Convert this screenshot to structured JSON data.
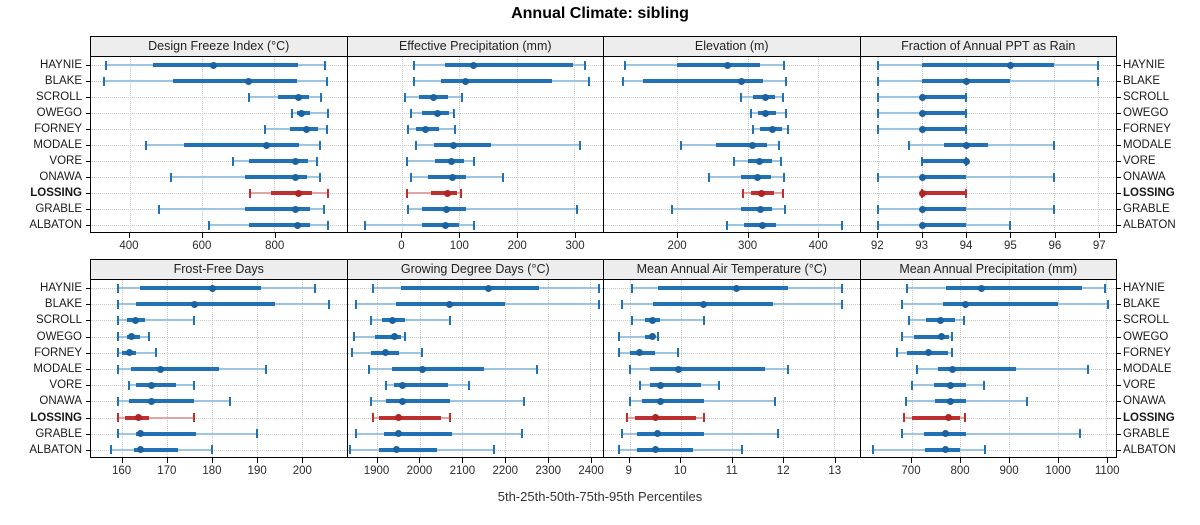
{
  "title": "Annual Climate: sibling",
  "caption": "5th-25th-50th-75th-95th Percentiles",
  "percentile_labels": [
    "5th",
    "25th",
    "50th",
    "75th",
    "95th"
  ],
  "sites": [
    "HAYNIE",
    "BLAKE",
    "SCROLL",
    "OWEGO",
    "FORNEY",
    "MODALE",
    "VORE",
    "ONAWA",
    "LOSSING",
    "GRABLE",
    "ALBATON"
  ],
  "highlight_site": "LOSSING",
  "colors": {
    "series": "#2171B5",
    "series_light": "#9DC4E0",
    "series_dot": "#1B62A1",
    "highlight": "#BE2F2F",
    "highlight_light": "#DFA6A6",
    "highlight_dot": "#B02424",
    "header_bg": "#EDEDED",
    "grid": "#C9C9C9",
    "border": "#000000"
  },
  "chart_data": [
    {
      "type": "dot-whisker",
      "title": "Design Freeze Index (°C)",
      "axis": {
        "min": 293,
        "max": 1000,
        "ticks": [
          400,
          600,
          800
        ]
      },
      "values_by_site": [
        [
          335,
          465,
          632,
          865,
          940
        ],
        [
          330,
          520,
          730,
          862,
          945
        ],
        [
          730,
          810,
          868,
          896,
          930
        ],
        [
          850,
          862,
          876,
          900,
          950
        ],
        [
          775,
          845,
          890,
          920,
          945
        ],
        [
          445,
          550,
          780,
          868,
          928
        ],
        [
          685,
          730,
          858,
          893,
          918
        ],
        [
          515,
          720,
          858,
          890,
          928
        ],
        [
          732,
          790,
          866,
          905,
          948
        ],
        [
          480,
          720,
          860,
          900,
          938
        ],
        [
          620,
          730,
          864,
          900,
          948
        ]
      ]
    },
    {
      "type": "dot-whisker",
      "title": "Effective Precipitation (mm)",
      "axis": {
        "min": -95,
        "max": 350,
        "ticks": [
          0,
          100,
          200,
          300
        ]
      },
      "values_by_site": [
        [
          20,
          75,
          125,
          298,
          318
        ],
        [
          20,
          68,
          110,
          262,
          325
        ],
        [
          5,
          30,
          55,
          80,
          105
        ],
        [
          15,
          35,
          62,
          82,
          90
        ],
        [
          10,
          25,
          40,
          65,
          92
        ],
        [
          25,
          55,
          90,
          155,
          310
        ],
        [
          8,
          58,
          87,
          108,
          125
        ],
        [
          15,
          45,
          88,
          112,
          175
        ],
        [
          8,
          50,
          80,
          95,
          103
        ],
        [
          10,
          35,
          78,
          112,
          305
        ],
        [
          -65,
          35,
          75,
          100,
          125
        ]
      ]
    },
    {
      "type": "dot-whisker",
      "title": "Elevation (m)",
      "axis": {
        "min": 95,
        "max": 460,
        "ticks": [
          200,
          300,
          400
        ]
      },
      "values_by_site": [
        [
          125,
          200,
          272,
          318,
          352
        ],
        [
          122,
          150,
          292,
          322,
          355
        ],
        [
          290,
          308,
          325,
          340,
          350
        ],
        [
          305,
          315,
          325,
          340,
          355
        ],
        [
          308,
          318,
          335,
          350,
          358
        ],
        [
          205,
          255,
          307,
          328,
          345
        ],
        [
          280,
          300,
          317,
          335,
          348
        ],
        [
          245,
          290,
          315,
          333,
          352
        ],
        [
          293,
          305,
          320,
          338,
          350
        ],
        [
          192,
          290,
          318,
          335,
          353
        ],
        [
          270,
          295,
          322,
          340,
          435
        ]
      ]
    },
    {
      "type": "dot-whisker",
      "title": "Fraction of Annual PPT as Rain",
      "axis": {
        "min": 91.6,
        "max": 97.4,
        "ticks": [
          92,
          93,
          94,
          95,
          96,
          97
        ]
      },
      "values_by_site": [
        [
          92,
          93,
          95,
          96,
          97
        ],
        [
          92,
          93,
          94,
          95,
          97
        ],
        [
          92,
          93,
          93,
          94,
          94
        ],
        [
          92,
          93,
          93,
          94,
          94
        ],
        [
          92,
          93,
          93,
          94,
          94
        ],
        [
          92.7,
          93.5,
          94,
          94.5,
          96
        ],
        [
          93,
          93,
          94,
          94,
          94
        ],
        [
          92,
          93,
          93,
          94,
          96
        ],
        [
          93,
          93,
          93,
          94,
          94
        ],
        [
          92,
          93,
          93,
          94,
          96
        ],
        [
          92,
          93,
          93,
          94,
          95
        ]
      ]
    },
    {
      "type": "dot-whisker",
      "title": "Frost-Free Days",
      "axis": {
        "min": 153,
        "max": 210,
        "ticks": [
          160,
          170,
          180,
          190,
          200
        ]
      },
      "values_by_site": [
        [
          159,
          164,
          180,
          191,
          203
        ],
        [
          159,
          163,
          176,
          194,
          206
        ],
        [
          159,
          161,
          163,
          165,
          176
        ],
        [
          159,
          161,
          162,
          164,
          166
        ],
        [
          159,
          160,
          161.5,
          163,
          167.5
        ],
        [
          159,
          162,
          168.5,
          181.5,
          192
        ],
        [
          161.5,
          163,
          166.5,
          172,
          176
        ],
        [
          159,
          161.5,
          166.5,
          176,
          184
        ],
        [
          159,
          160.5,
          163.5,
          166,
          176
        ],
        [
          159,
          163,
          164,
          176.5,
          190
        ],
        [
          157.5,
          162.5,
          164,
          172.5,
          180
        ]
      ]
    },
    {
      "type": "dot-whisker",
      "title": "Growing Degree Days (°C)",
      "axis": {
        "min": 1830,
        "max": 2430,
        "ticks": [
          1900,
          2000,
          2100,
          2200,
          2300,
          2400
        ]
      },
      "values_by_site": [
        [
          1890,
          1955,
          2160,
          2280,
          2420
        ],
        [
          1850,
          1945,
          2070,
          2200,
          2420
        ],
        [
          1885,
          1910,
          1935,
          1965,
          2070
        ],
        [
          1845,
          1895,
          1940,
          1955,
          1965
        ],
        [
          1840,
          1885,
          1920,
          1950,
          2005
        ],
        [
          1880,
          1935,
          2005,
          2150,
          2275
        ],
        [
          1920,
          1940,
          1960,
          2065,
          2115
        ],
        [
          1885,
          1920,
          1960,
          2070,
          2245
        ],
        [
          1890,
          1905,
          1950,
          2050,
          2070
        ],
        [
          1850,
          1915,
          1950,
          2075,
          2240
        ],
        [
          1835,
          1905,
          1945,
          2040,
          2175
        ]
      ]
    },
    {
      "type": "dot-whisker",
      "title": "Mean Annual Air Temperature (°C)",
      "axis": {
        "min": 8.5,
        "max": 13.5,
        "ticks": [
          9,
          10,
          11,
          12,
          13
        ]
      },
      "values_by_site": [
        [
          9.05,
          9.55,
          11.1,
          12.1,
          13.15
        ],
        [
          8.85,
          9.45,
          10.45,
          11.8,
          13.15
        ],
        [
          9.05,
          9.3,
          9.45,
          9.6,
          10.45
        ],
        [
          8.8,
          9.3,
          9.45,
          9.5,
          9.55
        ],
        [
          8.8,
          9.0,
          9.2,
          9.5,
          9.95
        ],
        [
          9.0,
          9.4,
          9.95,
          11.65,
          12.1
        ],
        [
          9.2,
          9.4,
          9.6,
          10.4,
          10.75
        ],
        [
          9.0,
          9.25,
          9.6,
          10.45,
          11.85
        ],
        [
          8.95,
          9.1,
          9.5,
          10.3,
          10.45
        ],
        [
          8.85,
          9.15,
          9.55,
          10.45,
          11.9
        ],
        [
          8.8,
          9.15,
          9.5,
          10.25,
          11.2
        ]
      ]
    },
    {
      "type": "dot-whisker",
      "title": "Mean Annual Precipitation (mm)",
      "axis": {
        "min": 595,
        "max": 1120,
        "ticks": [
          700,
          800,
          900,
          1000,
          1100
        ]
      },
      "values_by_site": [
        [
          690,
          770,
          843,
          1050,
          1098
        ],
        [
          680,
          765,
          810,
          1000,
          1103
        ],
        [
          695,
          730,
          760,
          790,
          808
        ],
        [
          680,
          705,
          762,
          776,
          783
        ],
        [
          670,
          690,
          735,
          775,
          784
        ],
        [
          712,
          755,
          785,
          915,
          1063
        ],
        [
          700,
          745,
          780,
          812,
          848
        ],
        [
          688,
          748,
          780,
          812,
          938
        ],
        [
          685,
          700,
          775,
          800,
          810
        ],
        [
          680,
          725,
          770,
          812,
          1045
        ],
        [
          620,
          727,
          770,
          800,
          850
        ]
      ]
    }
  ]
}
